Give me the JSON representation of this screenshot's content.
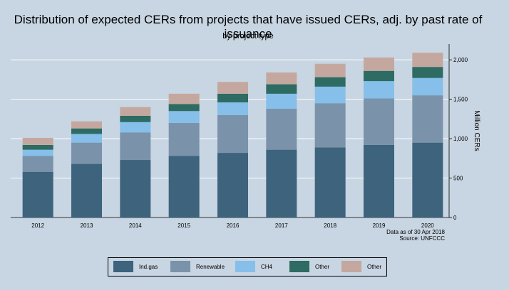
{
  "title": "Distribution of expected CERs from projects that have issued CERs, adj. by past rate of issuance",
  "subtitle": "by project type",
  "notes": {
    "line1": "Data as of 30 Apr 2018",
    "line2": "Source: UNFCCC"
  },
  "colors": {
    "background": "#c8d5e2",
    "gridline": "#ffffff",
    "series": [
      "#3d637d",
      "#7a93aa",
      "#85bfea",
      "#2e6b62",
      "#c4a8a0"
    ]
  },
  "chart_data": {
    "type": "bar",
    "stacked": true,
    "title": "Distribution of expected CERs from projects that have issued CERs, adj. by past rate of issuance",
    "subtitle": "by project type",
    "xlabel": "",
    "ylabel": "Million CERs",
    "ylim": [
      0,
      2200
    ],
    "yticks": [
      0,
      500,
      1000,
      1500,
      2000
    ],
    "ytick_labels": [
      "0",
      "500",
      "1,000",
      "1,500",
      "2,000"
    ],
    "y_axis_side": "right",
    "grid": true,
    "legend_position": "bottom",
    "categories": [
      "2012",
      "2013",
      "2014",
      "2015",
      "2016",
      "2017",
      "2018",
      "2019",
      "2020"
    ],
    "series": [
      {
        "name": "Ind.gas",
        "values": [
          580,
          680,
          730,
          780,
          820,
          860,
          890,
          920,
          950
        ]
      },
      {
        "name": "Renewable",
        "values": [
          200,
          270,
          350,
          420,
          480,
          520,
          560,
          590,
          600
        ]
      },
      {
        "name": "CH4",
        "values": [
          80,
          110,
          130,
          150,
          160,
          190,
          210,
          220,
          220
        ]
      },
      {
        "name": "Other",
        "values": [
          60,
          70,
          80,
          90,
          110,
          120,
          120,
          130,
          140
        ]
      },
      {
        "name": "Other",
        "values": [
          90,
          90,
          110,
          130,
          150,
          150,
          170,
          170,
          180
        ]
      }
    ]
  }
}
